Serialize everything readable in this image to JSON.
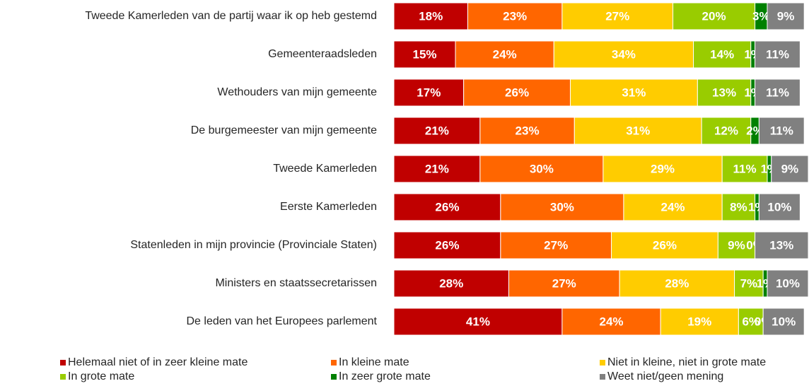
{
  "chart_data": {
    "type": "stacked-bar-horizontal",
    "categories": [
      "Tweede Kamerleden van de partij waar ik op heb gestemd",
      "Gemeenteraadsleden",
      "Wethouders van mijn gemeente",
      "De burgemeester van mijn gemeente",
      "Tweede Kamerleden",
      "Eerste Kamerleden",
      "Statenleden in mijn provincie (Provinciale Staten)",
      "Ministers en staatssecretarissen",
      "De leden van het Europees parlement"
    ],
    "series": [
      {
        "name": "Helemaal niet of in zeer kleine mate",
        "color": "#c00000",
        "values": [
          18,
          15,
          17,
          21,
          21,
          26,
          26,
          28,
          41
        ],
        "value_labels": [
          "18%",
          "15%",
          "17%",
          "21%",
          "21%",
          "26%",
          "26%",
          "28%",
          "41%"
        ]
      },
      {
        "name": "In kleine mate",
        "color": "#ff6600",
        "values": [
          23,
          24,
          26,
          23,
          30,
          30,
          27,
          27,
          24
        ],
        "value_labels": [
          "23%",
          "24%",
          "26%",
          "23%",
          "30%",
          "30%",
          "27%",
          "27%",
          "24%"
        ]
      },
      {
        "name": "Niet in kleine, niet in grote mate",
        "color": "#ffcc00",
        "values": [
          27,
          34,
          31,
          31,
          29,
          24,
          26,
          28,
          19
        ],
        "value_labels": [
          "27%",
          "34%",
          "31%",
          "31%",
          "29%",
          "24%",
          "26%",
          "28%",
          "19%"
        ]
      },
      {
        "name": "In grote mate",
        "color": "#99cc00",
        "values": [
          20,
          14,
          13,
          12,
          11,
          8,
          9,
          7,
          6
        ],
        "value_labels": [
          "20%",
          "14%",
          "13%",
          "12%",
          "11%",
          "8%",
          "9%",
          "7%",
          "6%"
        ]
      },
      {
        "name": "In zeer grote mate",
        "color": "#008000",
        "values": [
          3,
          1,
          1,
          2,
          1,
          1,
          0,
          1,
          0
        ],
        "value_labels": [
          "3%",
          "1%",
          "1%",
          "2%",
          "1%",
          "1%",
          "0%",
          "1%",
          "0%"
        ]
      },
      {
        "name": "Weet niet/geen mening",
        "color": "#808080",
        "values": [
          9,
          11,
          11,
          11,
          9,
          10,
          13,
          10,
          10
        ],
        "value_labels": [
          "9%",
          "11%",
          "11%",
          "11%",
          "9%",
          "10%",
          "13%",
          "10%",
          "10%"
        ]
      }
    ]
  }
}
